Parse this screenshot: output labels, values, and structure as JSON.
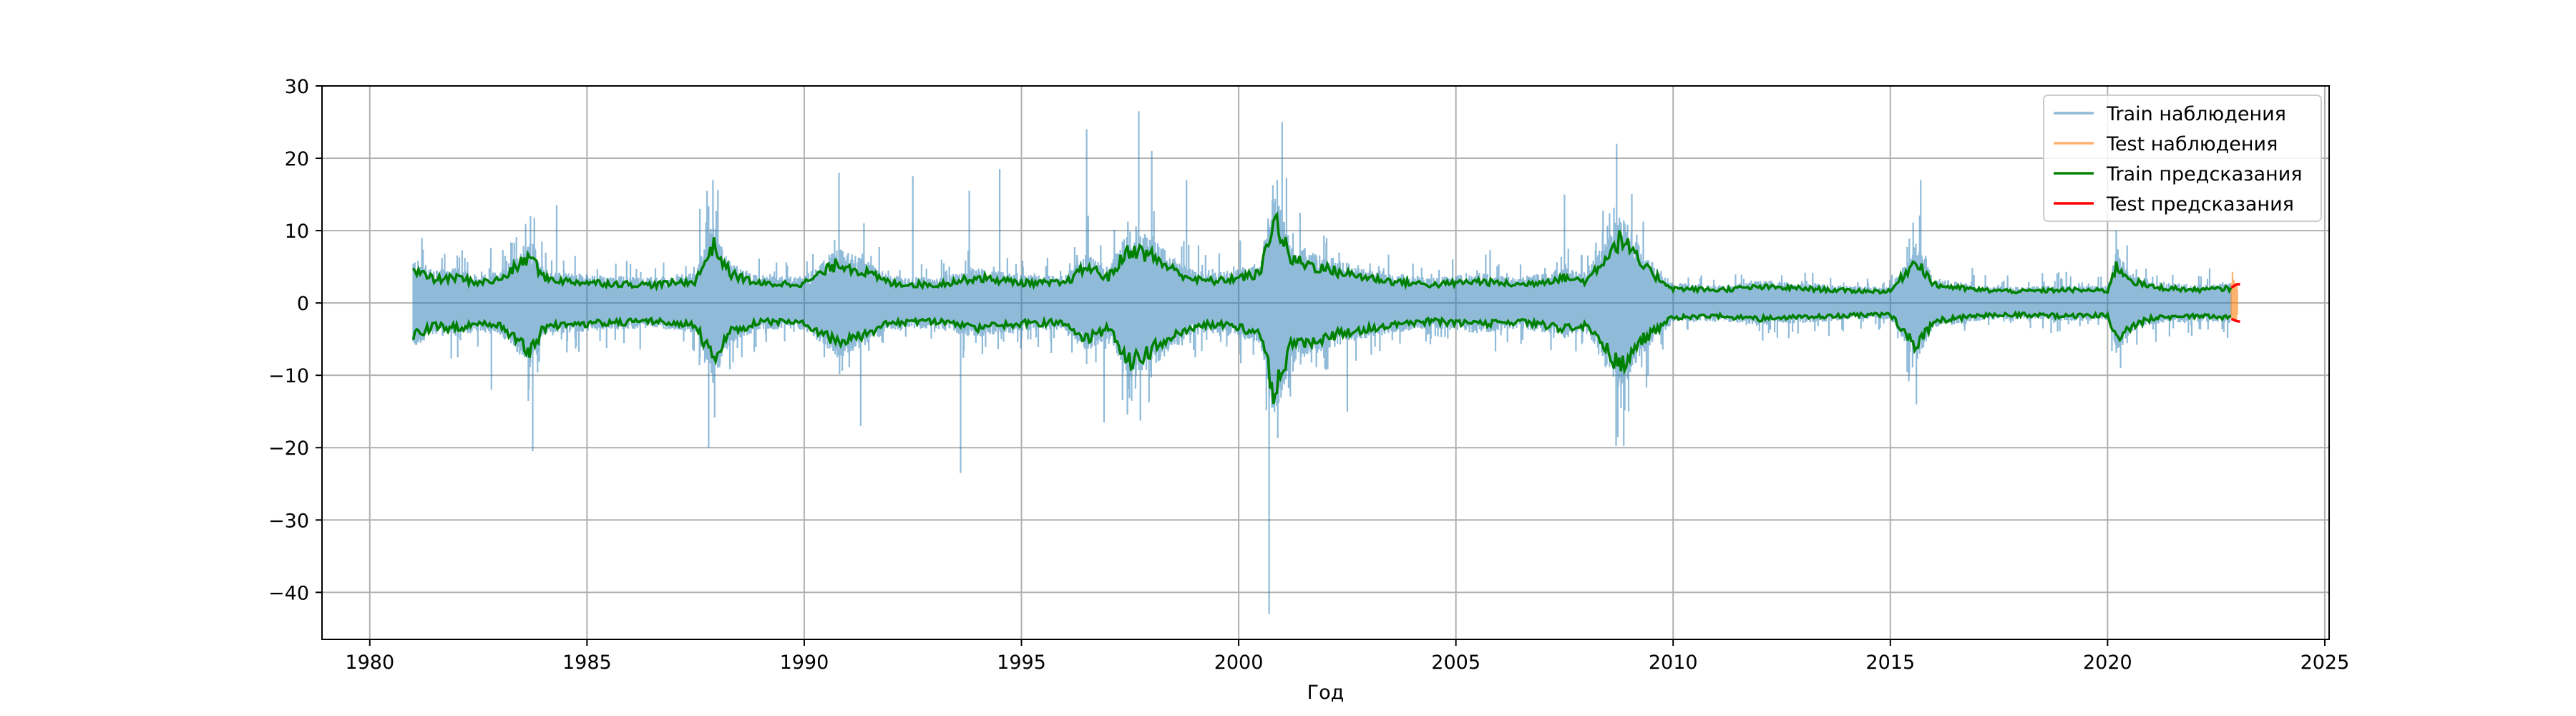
{
  "chart_data": {
    "type": "line",
    "title": "",
    "xlabel": "Год",
    "ylabel": "",
    "xlim": [
      1978.9,
      2025.1
    ],
    "ylim": [
      -46.5,
      30
    ],
    "x_ticks": [
      1980,
      1985,
      1990,
      1995,
      2000,
      2005,
      2010,
      2015,
      2020,
      2025
    ],
    "y_ticks": [
      30,
      20,
      10,
      0,
      -10,
      -20,
      -30,
      -40
    ],
    "grid": true,
    "legend_position": "top-right",
    "colors": {
      "train_obs": "#1f77b4",
      "test_obs": "#ff7f0e",
      "train_pred": "#008000",
      "test_pred": "#ff0000",
      "grid": "#b0b0b0"
    },
    "series": [
      {
        "name": "Train наблюдения",
        "kind": "observations",
        "x_range": [
          1981.0,
          2022.85
        ],
        "typical_range": [
          -5,
          5
        ],
        "spikes": [
          {
            "x": 1981.2,
            "y": 9
          },
          {
            "x": 1982.8,
            "y": -12
          },
          {
            "x": 1983.7,
            "y": 12
          },
          {
            "x": 1983.75,
            "y": -20.5
          },
          {
            "x": 1984.3,
            "y": 13.5
          },
          {
            "x": 1987.6,
            "y": 13
          },
          {
            "x": 1987.8,
            "y": -20
          },
          {
            "x": 1987.9,
            "y": 17
          },
          {
            "x": 1990.8,
            "y": 18
          },
          {
            "x": 1991.3,
            "y": -17
          },
          {
            "x": 1992.5,
            "y": 17.5
          },
          {
            "x": 1993.6,
            "y": -23.5
          },
          {
            "x": 1993.8,
            "y": 15.5
          },
          {
            "x": 1994.5,
            "y": 18.5
          },
          {
            "x": 1996.5,
            "y": 24
          },
          {
            "x": 1996.9,
            "y": -16.5
          },
          {
            "x": 1997.7,
            "y": 26.5
          },
          {
            "x": 1998.0,
            "y": 21
          },
          {
            "x": 1998.8,
            "y": 17
          },
          {
            "x": 2000.7,
            "y": -43
          },
          {
            "x": 2001.0,
            "y": 25
          },
          {
            "x": 2002.5,
            "y": -15
          },
          {
            "x": 2007.5,
            "y": 15
          },
          {
            "x": 2008.7,
            "y": 22
          },
          {
            "x": 2008.8,
            "y": -14.5
          },
          {
            "x": 2015.7,
            "y": 17
          },
          {
            "x": 2015.6,
            "y": -14
          },
          {
            "x": 2020.2,
            "y": 10
          },
          {
            "x": 2020.3,
            "y": -9
          }
        ]
      },
      {
        "name": "Test наблюдения",
        "kind": "observations",
        "x_range": [
          2022.85,
          2023.0
        ],
        "typical_range": [
          -4,
          5
        ]
      },
      {
        "name": "Train предсказания",
        "kind": "band",
        "upper": [
          [
            1981.0,
            4.5
          ],
          [
            1981.5,
            3.2
          ],
          [
            1982.0,
            3.5
          ],
          [
            1982.5,
            2.8
          ],
          [
            1983.0,
            3.2
          ],
          [
            1983.7,
            6.5
          ],
          [
            1984.0,
            3.5
          ],
          [
            1984.5,
            3.0
          ],
          [
            1985.5,
            2.7
          ],
          [
            1986.5,
            2.5
          ],
          [
            1987.5,
            3.0
          ],
          [
            1987.9,
            8.0
          ],
          [
            1988.3,
            4.0
          ],
          [
            1989.0,
            2.6
          ],
          [
            1990.0,
            2.7
          ],
          [
            1990.8,
            5.5
          ],
          [
            1991.5,
            4.0
          ],
          [
            1992.0,
            2.7
          ],
          [
            1993.0,
            2.5
          ],
          [
            1994.0,
            3.5
          ],
          [
            1995.0,
            2.8
          ],
          [
            1996.0,
            2.7
          ],
          [
            1996.5,
            5.0
          ],
          [
            1997.0,
            3.5
          ],
          [
            1997.5,
            7.5
          ],
          [
            1998.0,
            6.5
          ],
          [
            1998.5,
            4.5
          ],
          [
            1999.0,
            3.2
          ],
          [
            1999.5,
            3.0
          ],
          [
            2000.0,
            3.5
          ],
          [
            2000.5,
            4.0
          ],
          [
            2000.8,
            12.0
          ],
          [
            2001.2,
            6.0
          ],
          [
            2001.8,
            5.0
          ],
          [
            2002.5,
            4.0
          ],
          [
            2003.5,
            3.0
          ],
          [
            2004.5,
            2.5
          ],
          [
            2005.5,
            3.0
          ],
          [
            2006.5,
            2.5
          ],
          [
            2007.5,
            3.5
          ],
          [
            2008.0,
            3.0
          ],
          [
            2008.8,
            9.0
          ],
          [
            2009.3,
            5.0
          ],
          [
            2010.0,
            2.0
          ],
          [
            2011.0,
            1.8
          ],
          [
            2012.0,
            2.2
          ],
          [
            2013.0,
            2.0
          ],
          [
            2014.0,
            1.7
          ],
          [
            2015.0,
            1.6
          ],
          [
            2015.6,
            6.0
          ],
          [
            2016.0,
            2.5
          ],
          [
            2017.0,
            1.8
          ],
          [
            2018.0,
            1.6
          ],
          [
            2019.0,
            1.8
          ],
          [
            2020.0,
            1.7
          ],
          [
            2020.2,
            5.0
          ],
          [
            2020.6,
            3.0
          ],
          [
            2021.0,
            2.2
          ],
          [
            2022.0,
            1.8
          ],
          [
            2022.85,
            2.0
          ]
        ],
        "lower": [
          [
            1981.0,
            -4.5
          ],
          [
            1981.5,
            -3.2
          ],
          [
            1982.0,
            -3.5
          ],
          [
            1982.5,
            -2.8
          ],
          [
            1983.0,
            -3.2
          ],
          [
            1983.7,
            -7.0
          ],
          [
            1984.0,
            -3.5
          ],
          [
            1984.5,
            -3.0
          ],
          [
            1985.5,
            -2.7
          ],
          [
            1986.5,
            -2.5
          ],
          [
            1987.5,
            -3.0
          ],
          [
            1987.9,
            -8.0
          ],
          [
            1988.3,
            -4.0
          ],
          [
            1989.0,
            -2.6
          ],
          [
            1990.0,
            -2.7
          ],
          [
            1990.8,
            -5.5
          ],
          [
            1991.5,
            -4.0
          ],
          [
            1992.0,
            -2.7
          ],
          [
            1993.0,
            -2.5
          ],
          [
            1994.0,
            -3.5
          ],
          [
            1995.0,
            -2.8
          ],
          [
            1996.0,
            -2.7
          ],
          [
            1996.5,
            -5.0
          ],
          [
            1997.0,
            -3.5
          ],
          [
            1997.5,
            -8.0
          ],
          [
            1998.0,
            -6.5
          ],
          [
            1998.5,
            -4.5
          ],
          [
            1999.0,
            -3.2
          ],
          [
            1999.5,
            -3.0
          ],
          [
            2000.0,
            -3.5
          ],
          [
            2000.5,
            -4.0
          ],
          [
            2000.8,
            -12.5
          ],
          [
            2001.2,
            -6.0
          ],
          [
            2001.8,
            -5.0
          ],
          [
            2002.5,
            -4.0
          ],
          [
            2003.5,
            -3.0
          ],
          [
            2004.5,
            -2.5
          ],
          [
            2005.5,
            -3.0
          ],
          [
            2006.5,
            -2.5
          ],
          [
            2007.5,
            -3.5
          ],
          [
            2008.0,
            -3.0
          ],
          [
            2008.8,
            -9.0
          ],
          [
            2009.3,
            -5.0
          ],
          [
            2010.0,
            -2.0
          ],
          [
            2011.0,
            -1.8
          ],
          [
            2012.0,
            -2.2
          ],
          [
            2013.0,
            -2.0
          ],
          [
            2014.0,
            -1.7
          ],
          [
            2015.0,
            -1.6
          ],
          [
            2015.6,
            -6.0
          ],
          [
            2016.0,
            -2.5
          ],
          [
            2017.0,
            -1.8
          ],
          [
            2018.0,
            -1.6
          ],
          [
            2019.0,
            -1.8
          ],
          [
            2020.0,
            -1.7
          ],
          [
            2020.2,
            -5.0
          ],
          [
            2020.6,
            -3.0
          ],
          [
            2021.0,
            -2.2
          ],
          [
            2022.0,
            -1.8
          ],
          [
            2022.85,
            -2.0
          ]
        ]
      },
      {
        "name": "Test предсказания",
        "kind": "band",
        "upper": [
          [
            2022.85,
            2.2
          ],
          [
            2022.95,
            2.5
          ],
          [
            2023.05,
            2.6
          ]
        ],
        "lower": [
          [
            2022.85,
            -2.2
          ],
          [
            2022.95,
            -2.5
          ],
          [
            2023.05,
            -2.6
          ]
        ]
      }
    ]
  }
}
